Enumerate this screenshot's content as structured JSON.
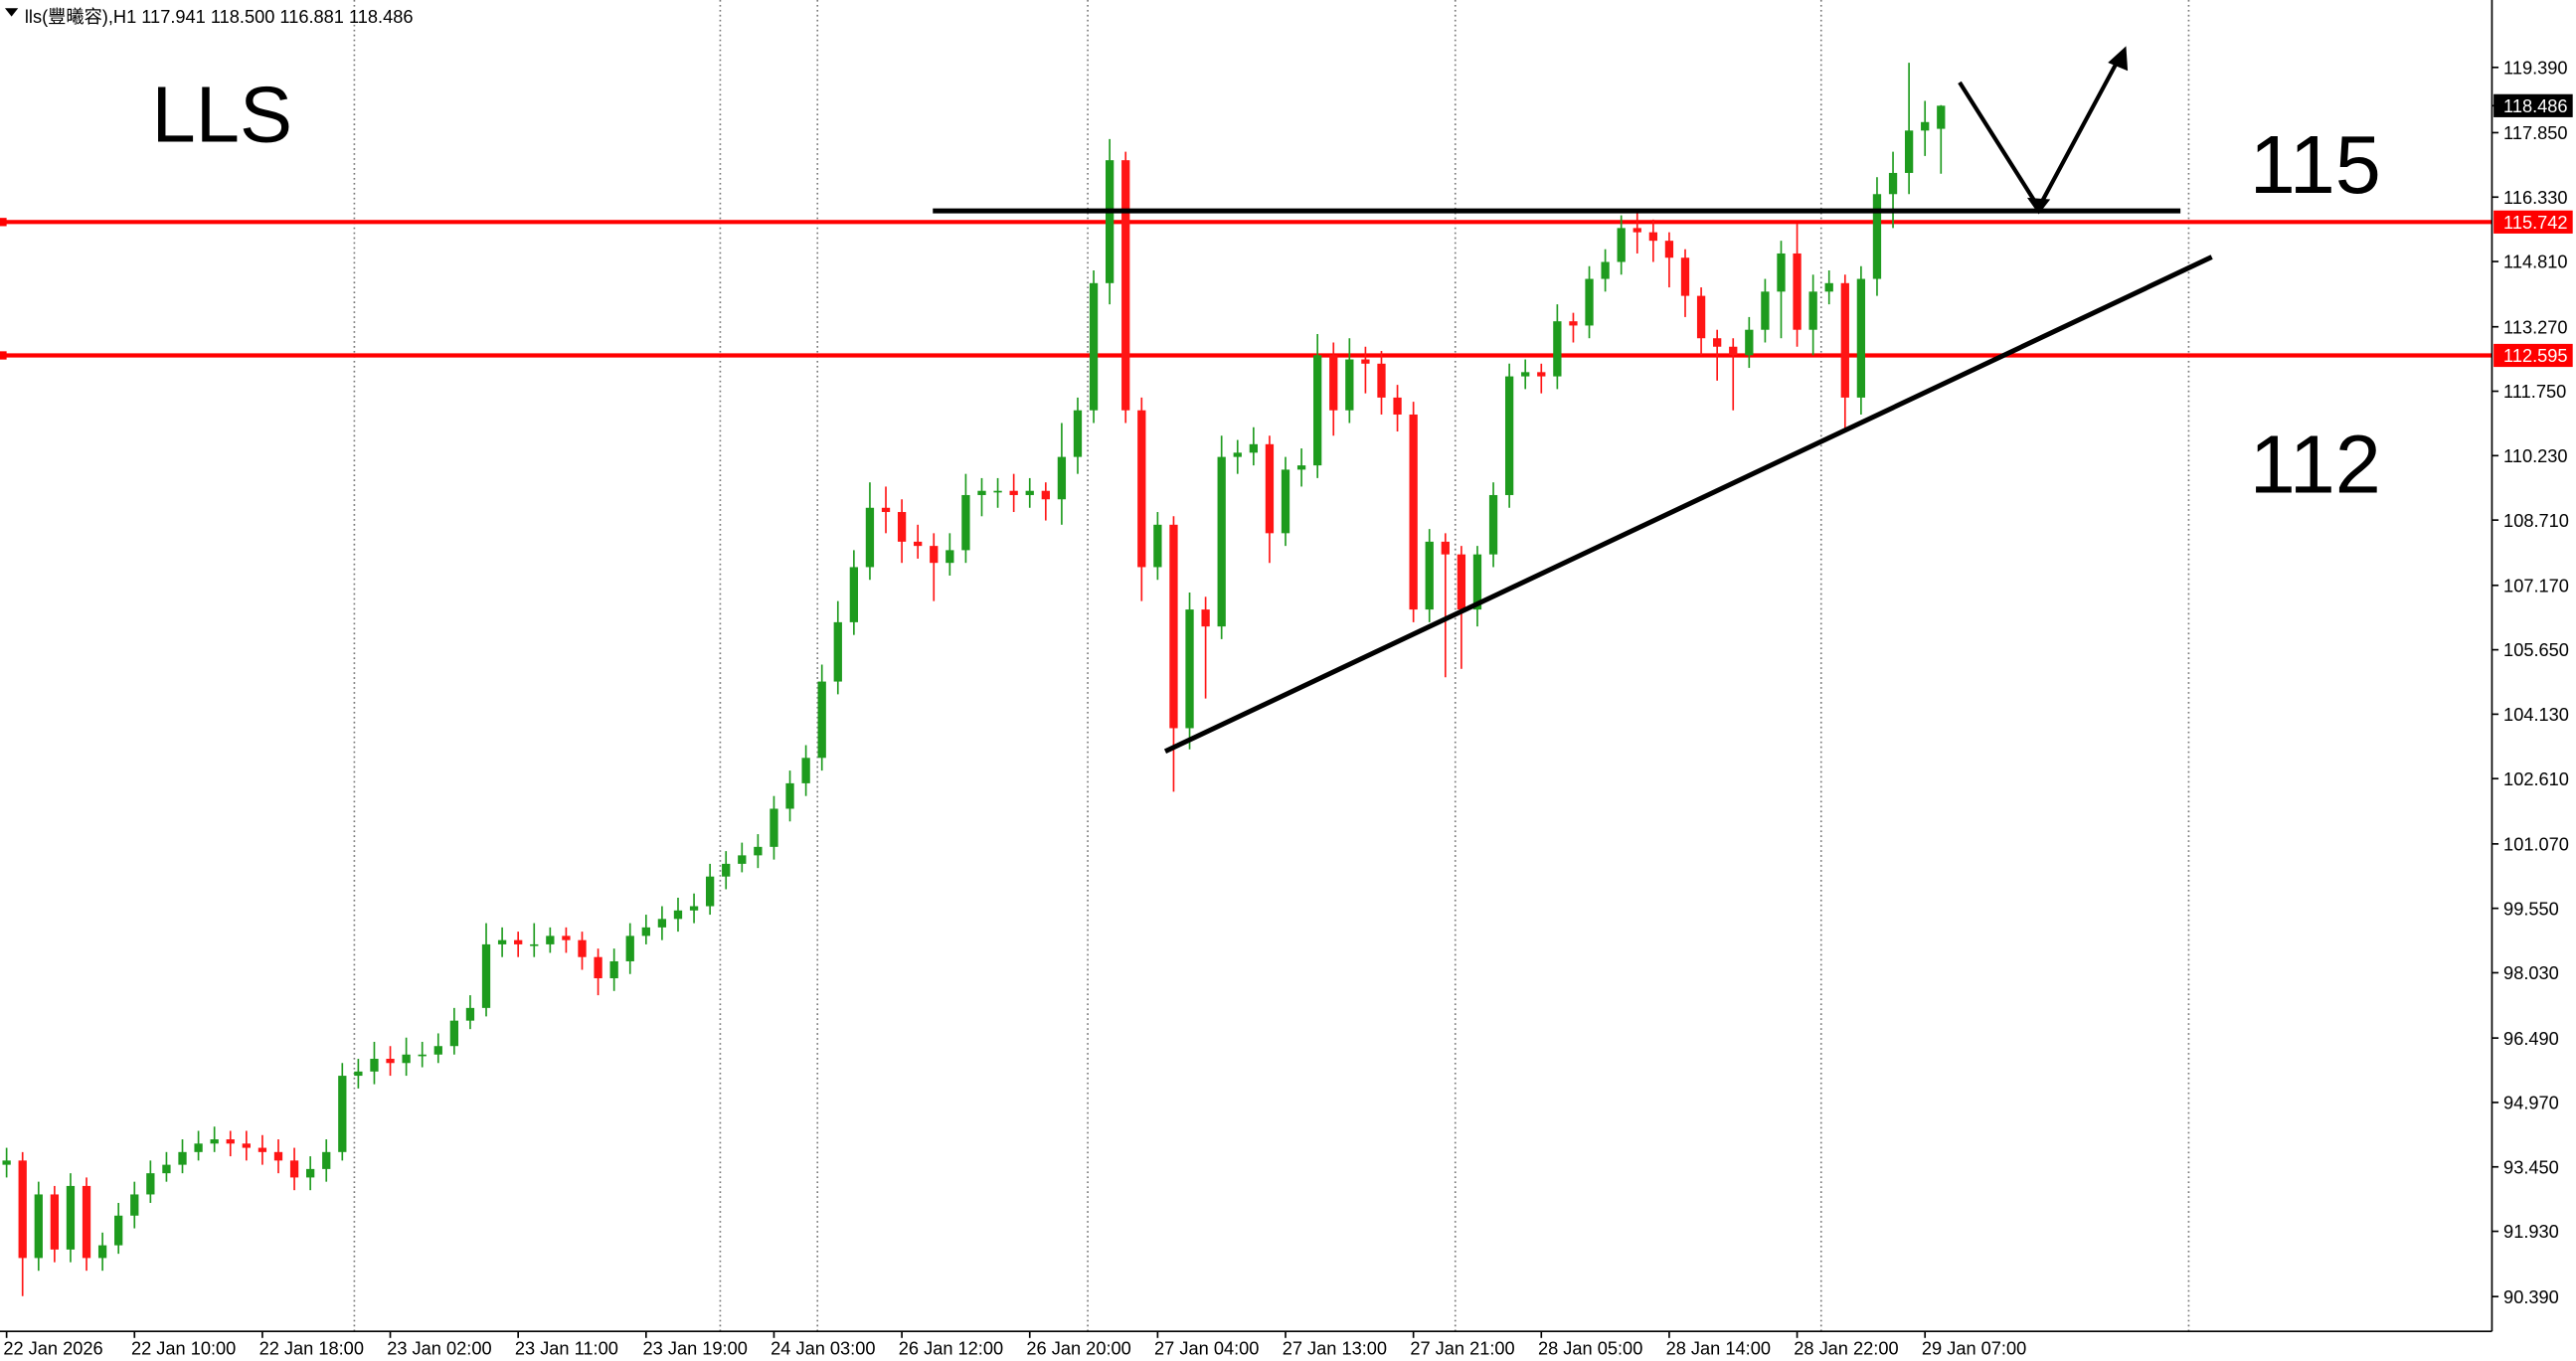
{
  "chart_data": {
    "type": "candlestick",
    "title": "lls(豐曦容),H1  117.941 118.500 116.881 118.486",
    "annotations": [
      "LLS",
      "115",
      "112"
    ],
    "up_color": "#1e9b1e",
    "down_color": "#ff1515",
    "level_color": "#ff0000",
    "categories": [
      "22 Jan 2026",
      null,
      null,
      null,
      null,
      null,
      null,
      null,
      "22 Jan 10:00",
      null,
      null,
      null,
      null,
      null,
      null,
      null,
      "22 Jan 18:00",
      null,
      null,
      null,
      null,
      null,
      null,
      null,
      "23 Jan 02:00",
      null,
      null,
      null,
      null,
      null,
      null,
      null,
      "23 Jan 11:00",
      null,
      null,
      null,
      null,
      null,
      null,
      null,
      "23 Jan 19:00",
      null,
      null,
      null,
      null,
      null,
      null,
      null,
      "24 Jan 03:00",
      null,
      null,
      null,
      null,
      null,
      null,
      null,
      "26 Jan 12:00",
      null,
      null,
      null,
      null,
      null,
      null,
      null,
      "26 Jan 20:00",
      null,
      null,
      null,
      null,
      null,
      null,
      null,
      "27 Jan 04:00",
      null,
      null,
      null,
      null,
      null,
      null,
      null,
      "27 Jan 13:00",
      null,
      null,
      null,
      null,
      null,
      null,
      null,
      "27 Jan 21:00",
      null,
      null,
      null,
      null,
      null,
      null,
      null,
      "28 Jan 05:00",
      null,
      null,
      null,
      null,
      null,
      null,
      null,
      "28 Jan 14:00",
      null,
      null,
      null,
      null,
      null,
      null,
      null,
      "28 Jan 22:00",
      null,
      null,
      null,
      null,
      null,
      null,
      null,
      "29 Jan 07:00",
      null
    ],
    "open": [
      93.5,
      93.6,
      91.3,
      92.8,
      91.5,
      93.0,
      91.3,
      91.6,
      92.3,
      92.8,
      93.3,
      93.5,
      93.8,
      94.0,
      94.1,
      94.0,
      93.9,
      93.8,
      93.6,
      93.2,
      93.4,
      93.8,
      95.6,
      95.7,
      96.0,
      95.9,
      96.1,
      96.1,
      96.3,
      96.9,
      97.2,
      98.7,
      98.8,
      98.7,
      98.7,
      98.9,
      98.8,
      98.4,
      97.9,
      98.3,
      98.9,
      99.1,
      99.3,
      99.5,
      99.6,
      100.3,
      100.6,
      100.8,
      101.0,
      101.9,
      102.5,
      103.1,
      104.9,
      106.3,
      107.6,
      109.0,
      108.9,
      108.2,
      108.1,
      107.7,
      108.0,
      109.3,
      109.4,
      109.4,
      109.3,
      109.4,
      109.2,
      110.2,
      111.3,
      114.3,
      117.2,
      111.3,
      107.6,
      108.6,
      103.8,
      106.6,
      106.2,
      110.2,
      110.3,
      110.5,
      108.4,
      109.9,
      110.0,
      112.6,
      111.3,
      112.5,
      112.4,
      111.6,
      111.2,
      106.6,
      108.2,
      107.9,
      106.6,
      107.9,
      109.3,
      112.1,
      112.2,
      112.1,
      113.4,
      113.3,
      114.4,
      114.8,
      115.6,
      115.5,
      115.3,
      114.9,
      114.0,
      113.0,
      112.8,
      112.6,
      113.2,
      114.1,
      115.0,
      113.2,
      114.1,
      114.3,
      111.6,
      114.4,
      116.4,
      116.9,
      117.9,
      117.941
    ],
    "high": [
      93.9,
      93.8,
      93.1,
      93.0,
      93.3,
      93.2,
      91.9,
      92.6,
      93.1,
      93.6,
      93.8,
      94.1,
      94.3,
      94.4,
      94.3,
      94.3,
      94.2,
      94.1,
      93.9,
      93.7,
      94.1,
      95.9,
      96.0,
      96.4,
      96.3,
      96.5,
      96.4,
      96.6,
      97.2,
      97.5,
      99.2,
      99.1,
      99.0,
      99.2,
      99.1,
      99.1,
      99.0,
      98.6,
      98.6,
      99.2,
      99.4,
      99.6,
      99.8,
      99.9,
      100.6,
      100.9,
      101.1,
      101.3,
      102.2,
      102.8,
      103.4,
      105.3,
      106.8,
      108.0,
      109.6,
      109.5,
      109.2,
      108.6,
      108.4,
      108.4,
      109.8,
      109.7,
      109.7,
      109.8,
      109.7,
      109.6,
      111.0,
      111.6,
      114.6,
      117.7,
      117.4,
      111.6,
      108.9,
      108.8,
      107.0,
      106.9,
      110.7,
      110.6,
      110.9,
      110.7,
      110.2,
      110.4,
      113.1,
      112.9,
      113.0,
      112.8,
      112.7,
      111.9,
      111.5,
      108.5,
      108.4,
      108.1,
      108.1,
      109.6,
      112.4,
      112.5,
      112.4,
      113.8,
      113.6,
      114.7,
      115.1,
      115.9,
      116.0,
      115.8,
      115.5,
      115.1,
      114.2,
      113.2,
      113.0,
      113.5,
      114.4,
      115.3,
      115.7,
      114.5,
      114.6,
      114.5,
      114.7,
      116.8,
      117.4,
      119.5,
      118.6,
      118.5
    ],
    "low": [
      93.2,
      90.4,
      91.0,
      91.2,
      91.2,
      91.0,
      91.0,
      91.4,
      92.0,
      92.6,
      93.1,
      93.3,
      93.6,
      93.8,
      93.7,
      93.6,
      93.5,
      93.3,
      92.9,
      92.9,
      93.1,
      93.6,
      95.3,
      95.4,
      95.6,
      95.6,
      95.8,
      95.9,
      96.1,
      96.7,
      97.0,
      98.4,
      98.4,
      98.4,
      98.5,
      98.5,
      98.1,
      97.5,
      97.6,
      98.0,
      98.7,
      98.8,
      99.0,
      99.2,
      99.4,
      100.0,
      100.4,
      100.5,
      100.7,
      101.6,
      102.2,
      102.8,
      104.6,
      106.0,
      107.3,
      108.4,
      107.7,
      107.8,
      106.8,
      107.4,
      107.7,
      108.8,
      109.0,
      108.9,
      109.0,
      108.7,
      108.6,
      109.8,
      111.0,
      113.8,
      111.0,
      106.8,
      107.3,
      102.3,
      103.3,
      104.5,
      105.9,
      109.8,
      110.0,
      107.7,
      108.1,
      109.5,
      109.7,
      110.7,
      111.0,
      111.7,
      111.2,
      110.8,
      106.3,
      106.3,
      105.0,
      105.2,
      106.2,
      107.6,
      109.0,
      111.8,
      111.7,
      111.8,
      112.9,
      113.0,
      114.1,
      114.5,
      115.0,
      114.8,
      114.2,
      113.5,
      112.6,
      112.0,
      111.3,
      112.3,
      112.9,
      113.0,
      112.8,
      112.6,
      113.8,
      110.8,
      111.2,
      114.0,
      115.6,
      116.4,
      117.3,
      116.881
    ],
    "close": [
      93.6,
      91.3,
      92.8,
      91.5,
      93.0,
      91.3,
      91.6,
      92.3,
      92.8,
      93.3,
      93.5,
      93.8,
      94.0,
      94.1,
      94.0,
      93.9,
      93.8,
      93.6,
      93.2,
      93.4,
      93.8,
      95.6,
      95.7,
      96.0,
      95.9,
      96.1,
      96.1,
      96.3,
      96.9,
      97.2,
      98.7,
      98.8,
      98.7,
      98.7,
      98.9,
      98.8,
      98.4,
      97.9,
      98.3,
      98.9,
      99.1,
      99.3,
      99.5,
      99.6,
      100.3,
      100.6,
      100.8,
      101.0,
      101.9,
      102.5,
      103.1,
      104.9,
      106.3,
      107.6,
      109.0,
      108.9,
      108.2,
      108.1,
      107.7,
      108.0,
      109.3,
      109.4,
      109.4,
      109.3,
      109.4,
      109.2,
      110.2,
      111.3,
      114.3,
      117.2,
      111.3,
      107.6,
      108.6,
      103.8,
      106.6,
      106.2,
      110.2,
      110.3,
      110.5,
      108.4,
      109.9,
      110.0,
      112.6,
      111.3,
      112.5,
      112.4,
      111.6,
      111.2,
      106.6,
      108.2,
      107.9,
      106.6,
      107.9,
      109.3,
      112.1,
      112.2,
      112.1,
      113.4,
      113.3,
      114.4,
      114.8,
      115.6,
      115.5,
      115.3,
      114.9,
      114.0,
      113.0,
      112.8,
      112.6,
      113.2,
      114.1,
      115.0,
      113.2,
      114.1,
      114.3,
      111.6,
      114.4,
      116.4,
      116.9,
      117.9,
      118.1,
      118.486
    ],
    "levels": [
      {
        "value": 115.742,
        "label": "115.742"
      },
      {
        "value": 112.595,
        "label": "112.595"
      }
    ],
    "ylim": [
      89.57,
      120.98
    ],
    "yticks": [
      {
        "value": 119.39,
        "label": "119.390"
      },
      {
        "value": 117.85,
        "label": "117.850"
      },
      {
        "value": 116.33,
        "label": "116.330"
      },
      {
        "value": 114.81,
        "label": "114.810"
      },
      {
        "value": 113.27,
        "label": "113.270"
      },
      {
        "value": 111.75,
        "label": "111.750"
      },
      {
        "value": 110.23,
        "label": "110.230"
      },
      {
        "value": 108.71,
        "label": "108.710"
      },
      {
        "value": 107.17,
        "label": "107.170"
      },
      {
        "value": 105.65,
        "label": "105.650"
      },
      {
        "value": 104.13,
        "label": "104.130"
      },
      {
        "value": 102.61,
        "label": "102.610"
      },
      {
        "value": 101.07,
        "label": "101.070"
      },
      {
        "value": 99.55,
        "label": "99.550"
      },
      {
        "value": 98.03,
        "label": "98.030"
      },
      {
        "value": 96.49,
        "label": "96.490"
      },
      {
        "value": 94.97,
        "label": "94.970"
      },
      {
        "value": 93.45,
        "label": "93.450"
      },
      {
        "value": 91.93,
        "label": "91.930"
      },
      {
        "value": 90.39,
        "label": "90.390"
      }
    ]
  }
}
